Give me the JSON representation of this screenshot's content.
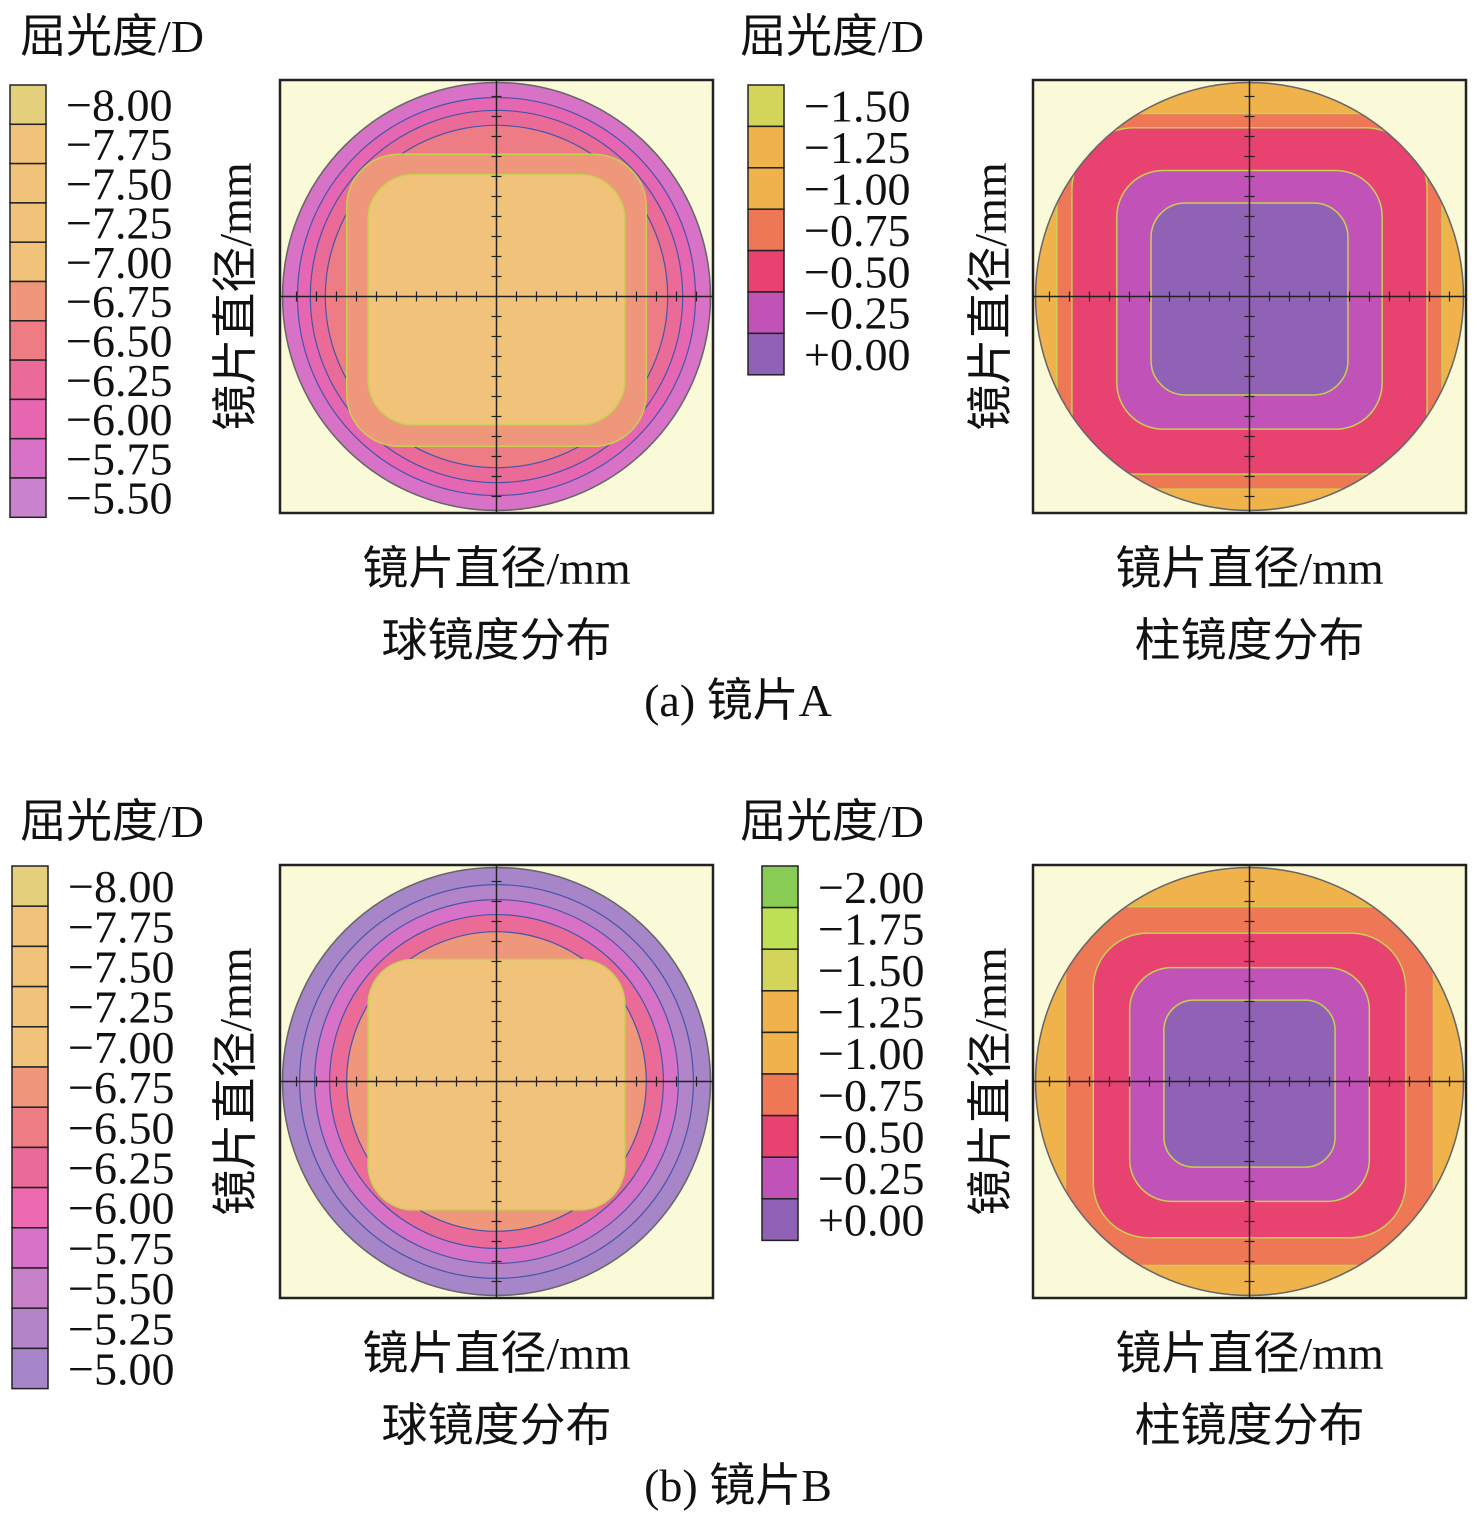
{
  "panels": [
    {
      "caption": "(a) 镜片A",
      "sphere": {
        "legend_title": "屈光度/D",
        "y_label": "镜片直径/mm",
        "x_label": "镜片直径/mm",
        "map_caption": "球镜度分布",
        "legend": [
          {
            "label": "−8.00",
            "color": "#e3cf7c"
          },
          {
            "label": "−7.75",
            "color": "#f1c27a"
          },
          {
            "label": "−7.50",
            "color": "#f1c27a"
          },
          {
            "label": "−7.25",
            "color": "#f1c27a"
          },
          {
            "label": "−7.00",
            "color": "#f1c27a"
          },
          {
            "label": "−6.75",
            "color": "#ef977b"
          },
          {
            "label": "−6.50",
            "color": "#ed7c84"
          },
          {
            "label": "−6.25",
            "color": "#ea6a98"
          },
          {
            "label": "−6.00",
            "color": "#e766b2"
          },
          {
            "label": "−5.75",
            "color": "#d872c6"
          },
          {
            "label": "−5.50",
            "color": "#c883cc"
          }
        ]
      },
      "cylinder": {
        "legend_title": "屈光度/D",
        "y_label": "镜片直径/mm",
        "x_label": "镜片直径/mm",
        "map_caption": "柱镜度分布",
        "legend": [
          {
            "label": "−1.50",
            "color": "#d3d45a"
          },
          {
            "label": "−1.25",
            "color": "#f0b24b"
          },
          {
            "label": "−1.00",
            "color": "#f0b24b"
          },
          {
            "label": "−0.75",
            "color": "#ee7755"
          },
          {
            "label": "−0.50",
            "color": "#e84271"
          },
          {
            "label": "−0.25",
            "color": "#c152b8"
          },
          {
            "label": "+0.00",
            "color": "#9062b6"
          }
        ]
      }
    },
    {
      "caption": "(b) 镜片B",
      "sphere": {
        "legend_title": "屈光度/D",
        "y_label": "镜片直径/mm",
        "x_label": "镜片直径/mm",
        "map_caption": "球镜度分布",
        "legend": [
          {
            "label": "−8.00",
            "color": "#e3cf7c"
          },
          {
            "label": "−7.75",
            "color": "#f1c27a"
          },
          {
            "label": "−7.50",
            "color": "#f1c27a"
          },
          {
            "label": "−7.25",
            "color": "#f1c27a"
          },
          {
            "label": "−7.00",
            "color": "#f1c27a"
          },
          {
            "label": "−6.75",
            "color": "#ef977b"
          },
          {
            "label": "−6.50",
            "color": "#ed7c84"
          },
          {
            "label": "−6.25",
            "color": "#ea6a98"
          },
          {
            "label": "−6.00",
            "color": "#ee6ab0"
          },
          {
            "label": "−5.75",
            "color": "#d872c6"
          },
          {
            "label": "−5.50",
            "color": "#c880c8"
          },
          {
            "label": "−5.25",
            "color": "#b484c8"
          },
          {
            "label": "−5.00",
            "color": "#a686c8"
          }
        ]
      },
      "cylinder": {
        "legend_title": "屈光度/D",
        "y_label": "镜片直径/mm",
        "x_label": "镜片直径/mm",
        "map_caption": "柱镜度分布",
        "legend": [
          {
            "label": "−2.00",
            "color": "#88cc55"
          },
          {
            "label": "−1.75",
            "color": "#bde055"
          },
          {
            "label": "−1.50",
            "color": "#d3d45a"
          },
          {
            "label": "−1.25",
            "color": "#f0b24b"
          },
          {
            "label": "−1.00",
            "color": "#f0b24b"
          },
          {
            "label": "−0.75",
            "color": "#ee7755"
          },
          {
            "label": "−0.50",
            "color": "#e84271"
          },
          {
            "label": "−0.25",
            "color": "#c152b8"
          },
          {
            "label": "+0.00",
            "color": "#9062b6"
          }
        ]
      }
    }
  ]
}
